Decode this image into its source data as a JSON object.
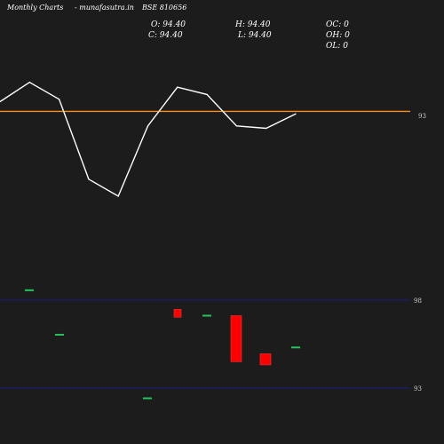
{
  "header": {
    "site_label": "Monthly Charts",
    "site_url": "- munafasutra.in",
    "symbol": "BSE 810656",
    "open": "O: 94.40",
    "high": "H: 94.40",
    "oc": "OC: 0",
    "close": "C: 94.40",
    "low": "L: 94.40",
    "oh": "OH: 0",
    "ol": "OL: 0"
  },
  "colors": {
    "background": "#1c1c1c",
    "price_line": "#ffffff",
    "reference_line": "#ff8c1a",
    "bull": "#22c55e",
    "bear": "#ff0000",
    "range_lines": "#1a1a8c"
  },
  "chart_data": [
    {
      "type": "line",
      "series": [
        {
          "values": [
            94.8,
            95.6,
            94.9,
            91.6,
            90.9,
            93.8,
            95.4,
            95.1,
            93.8,
            93.7,
            94.3
          ]
        }
      ],
      "reference_line": 94.4,
      "y_tick_label": "93",
      "ylim": [
        88.0,
        99.0
      ]
    },
    {
      "type": "candlestick",
      "range_lines": {
        "upper_label": "98",
        "lower_label": "93"
      },
      "candles": [
        {
          "open": 98.0,
          "close": 98.0,
          "direction": "flat"
        },
        {
          "open": 95.2,
          "close": 95.2,
          "direction": "flat"
        },
        {
          "open": 96.8,
          "close": 96.3,
          "direction": "down"
        },
        {
          "open": 91.2,
          "close": 91.2,
          "direction": "flat"
        },
        {
          "open": 96.4,
          "close": 96.4,
          "direction": "flat"
        },
        {
          "open": 96.4,
          "close": 93.5,
          "direction": "down"
        },
        {
          "open": 94.0,
          "close": 93.3,
          "direction": "down"
        },
        {
          "open": 94.4,
          "close": 94.4,
          "direction": "flat"
        }
      ],
      "ylim": [
        90.0,
        99.5
      ]
    }
  ]
}
